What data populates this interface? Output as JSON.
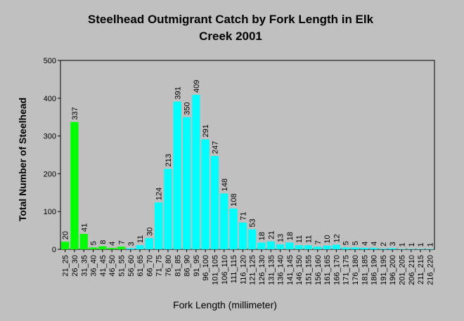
{
  "chart_data": {
    "type": "bar",
    "title_line1": "Steelhead Outmigrant Catch by Fork Length in Elk",
    "title_line2": "Creek 2001",
    "xlabel": "Fork Length (millimeter)",
    "ylabel": "Total Number of Steelhead",
    "ylim": [
      0,
      500
    ],
    "yticks": [
      0,
      100,
      200,
      300,
      400,
      500
    ],
    "grid": false,
    "categories": [
      "21_25",
      "26_30",
      "31_35",
      "36_40",
      "41_45",
      "46_50",
      "51_55",
      "56_60",
      "61_65",
      "66_70",
      "71_75",
      "76_80",
      "81_85",
      "86_90",
      "91_95",
      "96_100",
      "101_105",
      "106_110",
      "111_115",
      "116_120",
      "121_125",
      "126_130",
      "131_135",
      "136_140",
      "141_145",
      "146_150",
      "151_155",
      "156_160",
      "161_165",
      "166_170",
      "171_175",
      "176_180",
      "181_185",
      "186_190",
      "191_195",
      "196_200",
      "201_205",
      "206_210",
      "211_215",
      "216_220"
    ],
    "values": [
      20,
      337,
      41,
      5,
      8,
      4,
      7,
      3,
      11,
      30,
      124,
      213,
      391,
      350,
      409,
      291,
      247,
      148,
      108,
      71,
      53,
      18,
      21,
      13,
      18,
      11,
      11,
      7,
      10,
      12,
      5,
      5,
      4,
      4,
      2,
      3,
      1,
      1,
      1,
      1
    ],
    "colors": {
      "green": "#00ff00",
      "cyan": "#00ffff",
      "border": "#000000",
      "background": "#c0c0c0"
    },
    "green_count": 7
  }
}
